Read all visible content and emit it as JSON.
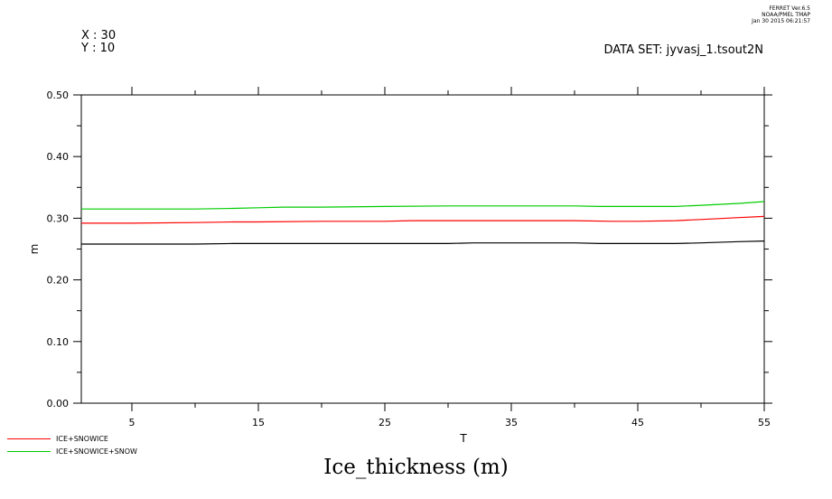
{
  "header": {
    "ferret_lines": [
      "FERRET Ver.6.5",
      "NOAA/PMEL TMAP",
      "Jan 30 2015 06:21:57"
    ],
    "coord_x": "X : 30",
    "coord_y": "Y : 10",
    "dataset": "DATA SET: jyvasj_1.tsout2N"
  },
  "chart_data": {
    "type": "line",
    "title": "Ice_thickness (m)",
    "xlabel": "T",
    "ylabel": "m",
    "xlim": [
      1,
      55
    ],
    "ylim": [
      0,
      0.5
    ],
    "x_ticks": [
      5,
      15,
      25,
      35,
      45,
      55
    ],
    "y_ticks": [
      0.0,
      0.1,
      0.2,
      0.3,
      0.4,
      0.5
    ],
    "y_tick_labels": [
      "0.00",
      "0.10",
      "0.20",
      "0.30",
      "0.40",
      "0.50"
    ],
    "grid": false,
    "legend_position": "bottom-left",
    "series": [
      {
        "name": "",
        "color": "#000000",
        "x": [
          1,
          5,
          10,
          13,
          15,
          20,
          25,
          30,
          32,
          35,
          40,
          42,
          45,
          48,
          50,
          53,
          55
        ],
        "values": [
          0.258,
          0.258,
          0.258,
          0.259,
          0.259,
          0.259,
          0.259,
          0.259,
          0.26,
          0.26,
          0.26,
          0.259,
          0.259,
          0.259,
          0.26,
          0.262,
          0.263
        ]
      },
      {
        "name": "ICE+SNOWICE",
        "color": "#ff0000",
        "x": [
          1,
          5,
          10,
          13,
          15,
          20,
          25,
          27,
          30,
          35,
          40,
          43,
          45,
          48,
          50,
          53,
          55
        ],
        "values": [
          0.292,
          0.292,
          0.293,
          0.294,
          0.294,
          0.295,
          0.295,
          0.296,
          0.296,
          0.296,
          0.296,
          0.295,
          0.295,
          0.296,
          0.298,
          0.301,
          0.303
        ]
      },
      {
        "name": "ICE+SNOWICE+SNOW",
        "color": "#00cc00",
        "x": [
          1,
          5,
          10,
          13,
          15,
          17,
          20,
          25,
          30,
          35,
          40,
          42,
          45,
          48,
          50,
          53,
          55
        ],
        "values": [
          0.315,
          0.315,
          0.315,
          0.316,
          0.317,
          0.318,
          0.318,
          0.319,
          0.32,
          0.32,
          0.32,
          0.319,
          0.319,
          0.319,
          0.321,
          0.324,
          0.327
        ]
      }
    ]
  }
}
